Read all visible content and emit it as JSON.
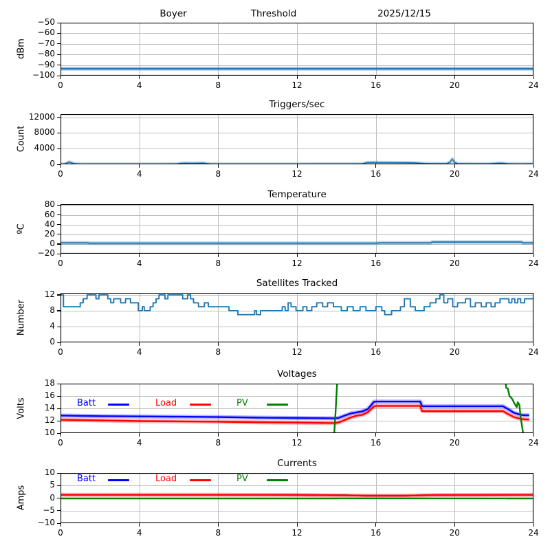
{
  "header": {
    "station": "Boyer",
    "plot_label": "Threshold",
    "date": "2025/12/15"
  },
  "chart_data": [
    {
      "type": "line",
      "header_titles": [
        "Boyer",
        "Threshold",
        "2025/12/15"
      ],
      "ylabel": "dBm",
      "ylim": [
        -100,
        -50
      ],
      "ytick_values": [
        -100,
        -90,
        -80,
        -70,
        -60,
        -50
      ],
      "ytick_labels": [
        "−100",
        "−90",
        "−80",
        "−70",
        "−60",
        "−50"
      ],
      "xlim": [
        0,
        24
      ],
      "xtick_values": [
        0,
        4,
        8,
        12,
        16,
        20,
        24
      ],
      "xtick_labels": [
        "0",
        "4",
        "8",
        "12",
        "16",
        "20",
        "24"
      ],
      "grid": true,
      "series": [
        {
          "name": "threshold-dbm",
          "color": "#1f77b4",
          "width": 2.4,
          "band": true,
          "x": [
            0,
            24
          ],
          "y": [
            -93.5,
            -93.5
          ]
        }
      ]
    },
    {
      "type": "line",
      "title": "Triggers/sec",
      "ylabel": "Count",
      "ylim": [
        0,
        12800
      ],
      "ytick_values": [
        0,
        4000,
        8000,
        12000
      ],
      "ytick_labels": [
        "0",
        "4000",
        "8000",
        "12000"
      ],
      "xlim": [
        0,
        24
      ],
      "xtick_values": [
        0,
        4,
        8,
        12,
        16,
        20,
        24
      ],
      "xtick_labels": [
        "0",
        "4",
        "8",
        "12",
        "16",
        "20",
        "24"
      ],
      "grid": true,
      "series": [
        {
          "name": "trigger-rate",
          "color": "#1f77b4",
          "width": 1.6,
          "band": true,
          "x": [
            0,
            0.2,
            0.35,
            0.45,
            0.55,
            0.7,
            0.9,
            1.2,
            2,
            3,
            4,
            5,
            5.9,
            6.05,
            6.3,
            6.7,
            7.0,
            7.25,
            7.45,
            7.6,
            8,
            9,
            10,
            11,
            12,
            13,
            14,
            14.8,
            15.3,
            15.55,
            15.8,
            16.1,
            16.5,
            17,
            17.5,
            17.9,
            18.2,
            18.5,
            18.8,
            19.2,
            19.6,
            19.78,
            19.88,
            19.98,
            20.15,
            20.4,
            21,
            21.7,
            22.1,
            22.3,
            22.5,
            22.7,
            23,
            23.4,
            23.8,
            24
          ],
          "y": [
            60,
            70,
            380,
            600,
            380,
            150,
            80,
            60,
            55,
            55,
            60,
            60,
            65,
            230,
            300,
            280,
            300,
            310,
            200,
            90,
            60,
            55,
            60,
            60,
            60,
            65,
            80,
            90,
            120,
            430,
            480,
            450,
            430,
            420,
            400,
            380,
            300,
            210,
            180,
            160,
            170,
            600,
            1350,
            500,
            180,
            140,
            120,
            130,
            250,
            300,
            260,
            140,
            110,
            90,
            120,
            100
          ]
        }
      ]
    },
    {
      "type": "line",
      "title": "Temperature",
      "ylabel": "ºC",
      "ylim": [
        -20,
        82
      ],
      "ytick_values": [
        -20,
        0,
        20,
        40,
        60,
        80
      ],
      "ytick_labels": [
        "−20",
        "0",
        "20",
        "40",
        "60",
        "80"
      ],
      "xlim": [
        0,
        24
      ],
      "xtick_values": [
        0,
        4,
        8,
        12,
        16,
        20,
        24
      ],
      "xtick_labels": [
        "0",
        "4",
        "8",
        "12",
        "16",
        "20",
        "24"
      ],
      "grid": true,
      "series": [
        {
          "name": "temperature-c",
          "color": "#1f77b4",
          "width": 2.0,
          "band": true,
          "x": [
            0,
            1.4,
            1.45,
            8,
            16.1,
            16.15,
            18.8,
            18.85,
            21,
            23.4,
            23.45,
            24
          ],
          "y": [
            2.4,
            2.4,
            1.5,
            1.5,
            1.5,
            2.4,
            2.4,
            3.9,
            3.9,
            3.9,
            2.4,
            2.4
          ]
        }
      ]
    },
    {
      "type": "step",
      "title": "Satellites Tracked",
      "ylabel": "Number",
      "ylim": [
        0,
        12.5
      ],
      "ytick_values": [
        0,
        4,
        8,
        12
      ],
      "ytick_labels": [
        "0",
        "4",
        "8",
        "12"
      ],
      "xlim": [
        0,
        24
      ],
      "xtick_values": [
        0,
        4,
        8,
        12,
        16,
        20,
        24
      ],
      "xtick_labels": [
        "0",
        "4",
        "8",
        "12",
        "16",
        "20",
        "24"
      ],
      "grid": true,
      "series": [
        {
          "name": "satellites-count",
          "color": "#1f77b4",
          "width": 1.9,
          "band": false,
          "x": [
            0,
            0.15,
            1.0,
            1.15,
            1.35,
            1.8,
            1.95,
            2.4,
            2.55,
            2.7,
            3.05,
            3.3,
            3.55,
            3.95,
            4.15,
            4.25,
            4.55,
            4.7,
            4.85,
            5.0,
            5.3,
            5.45,
            6.2,
            6.45,
            6.6,
            6.75,
            7.0,
            7.3,
            7.5,
            8.55,
            9.0,
            9.85,
            9.95,
            10.15,
            11.25,
            11.4,
            11.55,
            11.7,
            11.95,
            12.3,
            12.5,
            12.75,
            13.0,
            13.3,
            13.55,
            13.85,
            14.25,
            14.55,
            14.85,
            15.2,
            15.5,
            16.0,
            16.3,
            16.45,
            16.8,
            17.25,
            17.45,
            17.75,
            18.0,
            18.45,
            18.75,
            19.05,
            19.25,
            19.45,
            19.65,
            19.9,
            20.15,
            20.55,
            20.8,
            21.05,
            21.35,
            21.6,
            21.85,
            22.05,
            22.3,
            22.75,
            22.9,
            23.05,
            23.2,
            23.35,
            23.55,
            24
          ],
          "y": [
            12,
            9,
            10,
            11,
            12,
            11,
            12,
            11,
            10,
            11,
            10,
            11,
            10,
            8,
            9,
            8,
            9,
            10,
            11,
            12,
            11,
            12,
            11,
            12,
            11,
            10,
            9,
            10,
            9,
            8,
            7,
            8,
            7,
            8,
            9,
            8,
            10,
            9,
            8,
            9,
            8,
            9,
            10,
            9,
            10,
            9,
            8,
            9,
            8,
            9,
            8,
            9,
            8,
            7,
            8,
            9,
            11,
            9,
            8,
            9,
            10,
            11,
            12,
            10,
            11,
            9,
            10,
            11,
            9,
            10,
            9,
            10,
            9,
            10,
            11,
            10,
            11,
            10,
            11,
            10,
            11,
            11
          ]
        }
      ]
    },
    {
      "type": "line",
      "title": "Voltages",
      "ylabel": "Volts",
      "ylim": [
        10,
        18
      ],
      "ytick_values": [
        10,
        12,
        14,
        16,
        18
      ],
      "ytick_labels": [
        "10",
        "12",
        "14",
        "16",
        "18"
      ],
      "xlim": [
        0,
        24
      ],
      "xtick_values": [
        0,
        4,
        8,
        12,
        16,
        20,
        24
      ],
      "xtick_labels": [
        "0",
        "4",
        "8",
        "12",
        "16",
        "20",
        "24"
      ],
      "grid": true,
      "legend": {
        "items": [
          {
            "label": "Batt",
            "color": "#0000ff"
          },
          {
            "label": "Load",
            "color": "#ff0000"
          },
          {
            "label": "PV",
            "color": "#008000"
          }
        ]
      },
      "series": [
        {
          "name": "batt-voltage",
          "color": "#0000ff",
          "width": 2.4,
          "band": true,
          "x": [
            0,
            2,
            4,
            6,
            8,
            10,
            12,
            13.9,
            14.1,
            14.4,
            14.7,
            15.0,
            15.3,
            15.6,
            15.9,
            16.0,
            18.25,
            18.35,
            22.45,
            22.7,
            23.0,
            23.3,
            23.5,
            23.78
          ],
          "y": [
            12.85,
            12.75,
            12.7,
            12.65,
            12.6,
            12.5,
            12.45,
            12.4,
            12.45,
            12.8,
            13.15,
            13.35,
            13.5,
            13.9,
            15.05,
            15.1,
            15.1,
            14.35,
            14.35,
            13.9,
            13.3,
            13.0,
            12.9,
            12.88
          ]
        },
        {
          "name": "load-voltage",
          "color": "#ff0000",
          "width": 2.4,
          "band": true,
          "x": [
            0,
            2,
            4,
            6,
            8,
            10,
            12,
            13.9,
            14.1,
            14.4,
            14.7,
            15.0,
            15.3,
            15.6,
            15.9,
            16.0,
            18.25,
            18.35,
            22.45,
            22.7,
            23.0,
            23.3,
            23.5,
            23.78
          ],
          "y": [
            12.15,
            12.05,
            11.95,
            11.9,
            11.85,
            11.75,
            11.7,
            11.62,
            11.7,
            12.1,
            12.5,
            12.8,
            12.95,
            13.4,
            14.3,
            14.4,
            14.4,
            13.55,
            13.55,
            13.1,
            12.6,
            12.35,
            12.25,
            12.2
          ]
        },
        {
          "name": "pv-voltage",
          "color": "#008000",
          "width": 2.4,
          "band": false,
          "x": [
            13.87,
            13.95,
            14.05,
            22.55,
            22.62,
            22.7,
            22.78,
            22.9,
            23.05,
            23.15,
            23.2,
            23.28,
            23.35,
            23.45,
            23.52
          ],
          "y": [
            9.0,
            13.0,
            19.0,
            19.0,
            17.3,
            17.2,
            16.0,
            15.6,
            14.7,
            14.2,
            15.0,
            14.6,
            12.5,
            10.5,
            9.0
          ]
        }
      ]
    },
    {
      "type": "line",
      "title": "Currents",
      "ylabel": "Amps",
      "ylim": [
        -10,
        10
      ],
      "ytick_values": [
        -10,
        -5,
        0,
        5,
        10
      ],
      "ytick_labels": [
        "−10",
        "−5",
        "0",
        "5",
        "10"
      ],
      "xlim": [
        0,
        24
      ],
      "xtick_values": [
        0,
        4,
        8,
        12,
        16,
        20,
        24
      ],
      "xtick_labels": [
        "0",
        "4",
        "8",
        "12",
        "16",
        "20",
        "24"
      ],
      "grid": true,
      "legend": {
        "items": [
          {
            "label": "Batt",
            "color": "#0000ff"
          },
          {
            "label": "Load",
            "color": "#ff0000"
          },
          {
            "label": "PV",
            "color": "#008000"
          }
        ]
      },
      "series": [
        {
          "name": "batt-current",
          "color": "#0000ff",
          "width": 2.4,
          "band": false,
          "x": [
            0,
            4,
            8,
            12,
            14.5,
            15.5,
            17.5,
            19,
            22,
            24
          ],
          "y": [
            1.3,
            1.3,
            1.3,
            1.25,
            1.1,
            0.95,
            0.95,
            1.2,
            1.25,
            1.3
          ]
        },
        {
          "name": "load-current",
          "color": "#ff0000",
          "width": 2.4,
          "band": true,
          "x": [
            0,
            4,
            8,
            12,
            14.5,
            15.5,
            17.5,
            19,
            22,
            24
          ],
          "y": [
            1.3,
            1.3,
            1.3,
            1.25,
            1.1,
            0.95,
            0.95,
            1.2,
            1.25,
            1.3
          ]
        },
        {
          "name": "pv-current",
          "color": "#008000",
          "width": 2.4,
          "band": false,
          "x": [
            0,
            14,
            14.2,
            22.5,
            22.7,
            24
          ],
          "y": [
            -0.15,
            -0.15,
            -0.1,
            -0.1,
            -0.15,
            -0.15
          ]
        }
      ]
    }
  ],
  "colors": {
    "trace_blue": "#1f77b4",
    "batt_blue": "#0000ff",
    "load_red": "#ff0000",
    "pv_green": "#008000",
    "grid_gray": "#bdbdbd"
  }
}
